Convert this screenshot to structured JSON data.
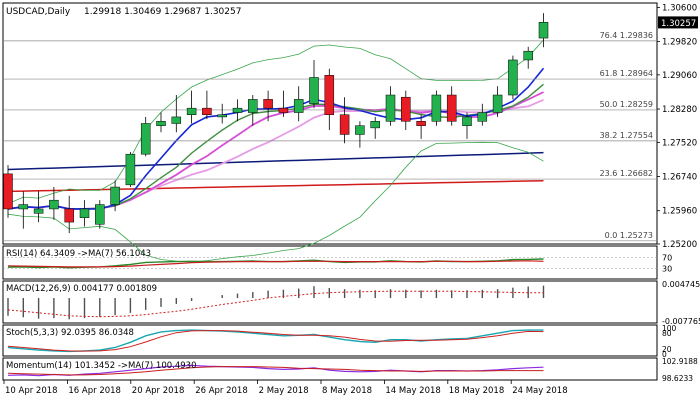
{
  "header": {
    "symbol_tf": "USDCAD,Daily",
    "ohlc": "1.29918 1.30469 1.29687 1.30257"
  },
  "colors": {
    "bull": "#23b14d",
    "bear": "#e81c24",
    "fib_line": "#8a8a8a",
    "bb": "#3aa64a",
    "ma_fast": "#1426d6",
    "ma_mid": "#3f8f3f",
    "ma_pink": "#d64fd6",
    "ma_lpink": "#e79be7",
    "ma_navy": "#0c1a7a",
    "ma_red": "#d11a1a",
    "rsi": "#2a8a2a",
    "rsi_ma": "#c81c1c",
    "macd_hist": "#505050",
    "macd_signal": "#d02020",
    "stoch_k": "#1aa6b0",
    "stoch_d": "#d02020",
    "mom": "#8a2be2",
    "mom_ma": "#c81c1c"
  },
  "chart_data": [
    {
      "type": "candlestick",
      "title": "USDCAD,Daily",
      "ylim": [
        1.252,
        1.307
      ],
      "yticks": [
        "1.30600",
        "1.29820",
        "1.29060",
        "1.28280",
        "1.27520",
        "1.26740",
        "1.25960",
        "1.25200"
      ],
      "current_price_label": "1.30257",
      "current_price": 1.30257,
      "candles": [
        {
          "o": 1.268,
          "h": 1.27,
          "l": 1.258,
          "c": 1.26
        },
        {
          "o": 1.26,
          "h": 1.264,
          "l": 1.2555,
          "c": 1.261
        },
        {
          "o": 1.259,
          "h": 1.264,
          "l": 1.257,
          "c": 1.26
        },
        {
          "o": 1.26,
          "h": 1.265,
          "l": 1.2575,
          "c": 1.262
        },
        {
          "o": 1.26,
          "h": 1.263,
          "l": 1.2545,
          "c": 1.257
        },
        {
          "o": 1.258,
          "h": 1.262,
          "l": 1.256,
          "c": 1.26
        },
        {
          "o": 1.2565,
          "h": 1.262,
          "l": 1.2555,
          "c": 1.261
        },
        {
          "o": 1.261,
          "h": 1.2665,
          "l": 1.2595,
          "c": 1.265
        },
        {
          "o": 1.2655,
          "h": 1.273,
          "l": 1.265,
          "c": 1.2725
        },
        {
          "o": 1.2725,
          "h": 1.281,
          "l": 1.272,
          "c": 1.2795
        },
        {
          "o": 1.279,
          "h": 1.282,
          "l": 1.2775,
          "c": 1.28
        },
        {
          "o": 1.2795,
          "h": 1.286,
          "l": 1.2775,
          "c": 1.281
        },
        {
          "o": 1.2815,
          "h": 1.287,
          "l": 1.2795,
          "c": 1.283
        },
        {
          "o": 1.283,
          "h": 1.287,
          "l": 1.2805,
          "c": 1.2815
        },
        {
          "o": 1.281,
          "h": 1.284,
          "l": 1.2795,
          "c": 1.2815
        },
        {
          "o": 1.282,
          "h": 1.285,
          "l": 1.28,
          "c": 1.283
        },
        {
          "o": 1.282,
          "h": 1.286,
          "l": 1.279,
          "c": 1.285
        },
        {
          "o": 1.285,
          "h": 1.287,
          "l": 1.28,
          "c": 1.283
        },
        {
          "o": 1.283,
          "h": 1.287,
          "l": 1.281,
          "c": 1.282
        },
        {
          "o": 1.282,
          "h": 1.288,
          "l": 1.28,
          "c": 1.285
        },
        {
          "o": 1.284,
          "h": 1.294,
          "l": 1.283,
          "c": 1.29
        },
        {
          "o": 1.2905,
          "h": 1.292,
          "l": 1.278,
          "c": 1.2815
        },
        {
          "o": 1.2815,
          "h": 1.2855,
          "l": 1.275,
          "c": 1.277
        },
        {
          "o": 1.277,
          "h": 1.28,
          "l": 1.274,
          "c": 1.279
        },
        {
          "o": 1.2785,
          "h": 1.281,
          "l": 1.276,
          "c": 1.28
        },
        {
          "o": 1.28,
          "h": 1.288,
          "l": 1.279,
          "c": 1.286
        },
        {
          "o": 1.2855,
          "h": 1.287,
          "l": 1.278,
          "c": 1.28
        },
        {
          "o": 1.28,
          "h": 1.2815,
          "l": 1.276,
          "c": 1.279
        },
        {
          "o": 1.28,
          "h": 1.287,
          "l": 1.279,
          "c": 1.286
        },
        {
          "o": 1.286,
          "h": 1.288,
          "l": 1.279,
          "c": 1.28
        },
        {
          "o": 1.279,
          "h": 1.282,
          "l": 1.276,
          "c": 1.281
        },
        {
          "o": 1.28,
          "h": 1.284,
          "l": 1.279,
          "c": 1.282
        },
        {
          "o": 1.282,
          "h": 1.288,
          "l": 1.281,
          "c": 1.286
        },
        {
          "o": 1.286,
          "h": 1.295,
          "l": 1.285,
          "c": 1.294
        },
        {
          "o": 1.294,
          "h": 1.297,
          "l": 1.292,
          "c": 1.296
        },
        {
          "o": 1.299,
          "h": 1.3047,
          "l": 1.2969,
          "c": 1.3026
        }
      ]
    },
    {
      "type": "fibonacci_levels",
      "levels": [
        {
          "label": "76.4",
          "price": 1.29836
        },
        {
          "label": "61.8",
          "price": 1.28964
        },
        {
          "label": "50.0",
          "price": 1.28259
        },
        {
          "label": "38.2",
          "price": 1.27554
        },
        {
          "label": "23.6",
          "price": 1.26682
        },
        {
          "label": "0.0",
          "price": 1.25273
        }
      ]
    },
    {
      "type": "line",
      "name": "RSI(14) 64.3409 ->MA(7) 56.1043",
      "ylim": [
        0,
        100
      ],
      "yticks": [
        "70",
        "30"
      ],
      "series": [
        {
          "values": [
            35,
            36,
            34,
            36,
            33,
            35,
            36,
            40,
            45,
            52,
            54,
            55,
            56,
            55,
            55,
            56,
            57,
            55,
            55,
            57,
            60,
            55,
            52,
            54,
            54,
            58,
            55,
            54,
            57,
            55,
            55,
            56,
            58,
            62,
            63,
            64.3
          ]
        },
        {
          "values": [
            40,
            39,
            38,
            37,
            36,
            36,
            36,
            37,
            39,
            42,
            45,
            48,
            51,
            53,
            54,
            55,
            55,
            55,
            55,
            56,
            56,
            56,
            55,
            55,
            55,
            55,
            55,
            55,
            56,
            56,
            55,
            55,
            56,
            57,
            58,
            56.1
          ]
        }
      ]
    },
    {
      "type": "bar",
      "name": "MACD(12,26,9) 0.004177 0.001809",
      "yticks": [
        "0.004745",
        "-0.007765"
      ],
      "values": [
        -0.006,
        -0.0065,
        -0.007,
        -0.0068,
        -0.0072,
        -0.0068,
        -0.0064,
        -0.0058,
        -0.005,
        -0.004,
        -0.003,
        -0.002,
        -0.001,
        0.0,
        0.001,
        0.0015,
        0.002,
        0.0025,
        0.0028,
        0.0032,
        0.004,
        0.0034,
        0.003,
        0.0028,
        0.0026,
        0.003,
        0.0028,
        0.0026,
        0.0028,
        0.0026,
        0.0026,
        0.0028,
        0.003,
        0.0035,
        0.0039,
        0.0042
      ],
      "signal": [
        -0.004,
        -0.0045,
        -0.005,
        -0.0055,
        -0.006,
        -0.0062,
        -0.0063,
        -0.0062,
        -0.006,
        -0.0056,
        -0.005,
        -0.0045,
        -0.0038,
        -0.003,
        -0.0022,
        -0.0015,
        -0.0008,
        0.0,
        0.0006,
        0.001,
        0.0015,
        0.0018,
        0.002,
        0.0021,
        0.0022,
        0.0023,
        0.0023,
        0.0023,
        0.0023,
        0.0023,
        0.0022,
        0.0021,
        0.002,
        0.0019,
        0.0018,
        0.0018
      ]
    },
    {
      "type": "line",
      "name": "Stoch(5,3,3) 92.0395 86.0348",
      "ylim": [
        0,
        100
      ],
      "yticks": [
        "100",
        "80",
        "20",
        "0"
      ],
      "series": [
        {
          "values": [
            25,
            20,
            15,
            12,
            10,
            12,
            15,
            25,
            45,
            70,
            85,
            90,
            92,
            90,
            88,
            85,
            80,
            75,
            70,
            72,
            75,
            65,
            55,
            48,
            45,
            55,
            55,
            50,
            55,
            58,
            60,
            70,
            80,
            90,
            92,
            92
          ]
        },
        {
          "values": [
            30,
            25,
            20,
            15,
            12,
            11,
            12,
            17,
            28,
            46,
            66,
            82,
            89,
            90,
            90,
            88,
            84,
            80,
            75,
            72,
            72,
            70,
            65,
            56,
            50,
            49,
            52,
            53,
            53,
            55,
            57,
            63,
            70,
            80,
            87,
            86
          ]
        }
      ]
    },
    {
      "type": "line",
      "name": "Momentum(14) 101.3452 ->MA(7) 100.4930",
      "yticks": [
        "102.9188",
        "98.6233"
      ],
      "series": [
        {
          "values": [
            99.3,
            99.4,
            99.2,
            99.5,
            99.3,
            99.6,
            99.8,
            100.2,
            100.6,
            101.0,
            101.4,
            101.6,
            101.8,
            101.6,
            101.5,
            101.4,
            101.3,
            101.0,
            100.8,
            100.9,
            101.2,
            100.6,
            100.3,
            100.2,
            100.3,
            100.6,
            100.4,
            100.2,
            100.5,
            100.5,
            100.4,
            100.5,
            100.7,
            101.0,
            101.2,
            101.35
          ]
        },
        {
          "values": [
            99.8,
            99.7,
            99.6,
            99.5,
            99.4,
            99.4,
            99.5,
            99.7,
            99.9,
            100.2,
            100.6,
            100.9,
            101.2,
            101.4,
            101.5,
            101.5,
            101.5,
            101.4,
            101.3,
            101.1,
            101.0,
            100.9,
            100.8,
            100.6,
            100.5,
            100.4,
            100.4,
            100.3,
            100.4,
            100.4,
            100.4,
            100.4,
            100.5,
            100.5,
            100.5,
            100.49
          ]
        }
      ]
    }
  ],
  "indicators": {
    "rsi_label": "RSI(14) 64.3409 ->MA(7) 56.1043",
    "macd_label": "MACD(12,26,9) 0.004177 0.001809",
    "stoch_label": "Stoch(5,3,3) 92.0395 86.0348",
    "mom_label": "Momentum(14) 101.3452 ->MA(7) 100.4930"
  },
  "xaxis": {
    "dates": [
      "10 Apr 2018",
      "16 Apr 2018",
      "20 Apr 2018",
      "26 Apr 2018",
      "2 May 2018",
      "8 May 2018",
      "14 May 2018",
      "18 May 2018",
      "24 May 2018"
    ]
  }
}
